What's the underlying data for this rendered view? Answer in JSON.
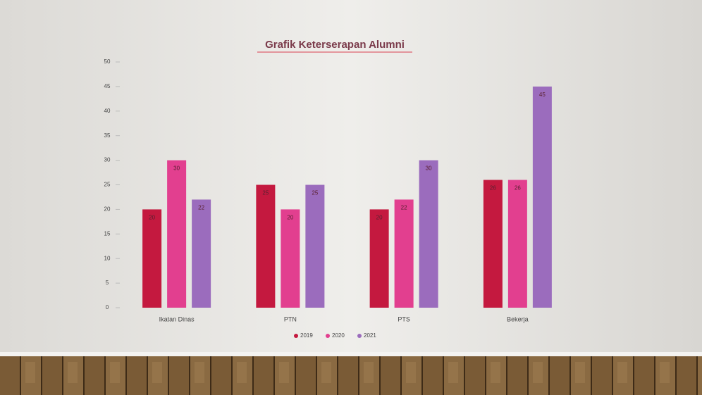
{
  "chart_data": {
    "type": "bar",
    "title": "Grafik Keterserapan Alumni",
    "categories": [
      "Ikatan Dinas",
      "PTN",
      "PTS",
      "Bekerja"
    ],
    "series": [
      {
        "name": "2019",
        "color": "#c4193f",
        "values": [
          20,
          25,
          20,
          26
        ]
      },
      {
        "name": "2020",
        "color": "#e23f8f",
        "values": [
          30,
          20,
          22,
          26
        ]
      },
      {
        "name": "2021",
        "color": "#9b6cbd",
        "values": [
          22,
          25,
          30,
          45
        ]
      }
    ],
    "ylim": [
      0,
      50
    ],
    "yticks": [
      0,
      5,
      10,
      15,
      20,
      25,
      30,
      35,
      40,
      45,
      50
    ],
    "legend": "bottom"
  }
}
